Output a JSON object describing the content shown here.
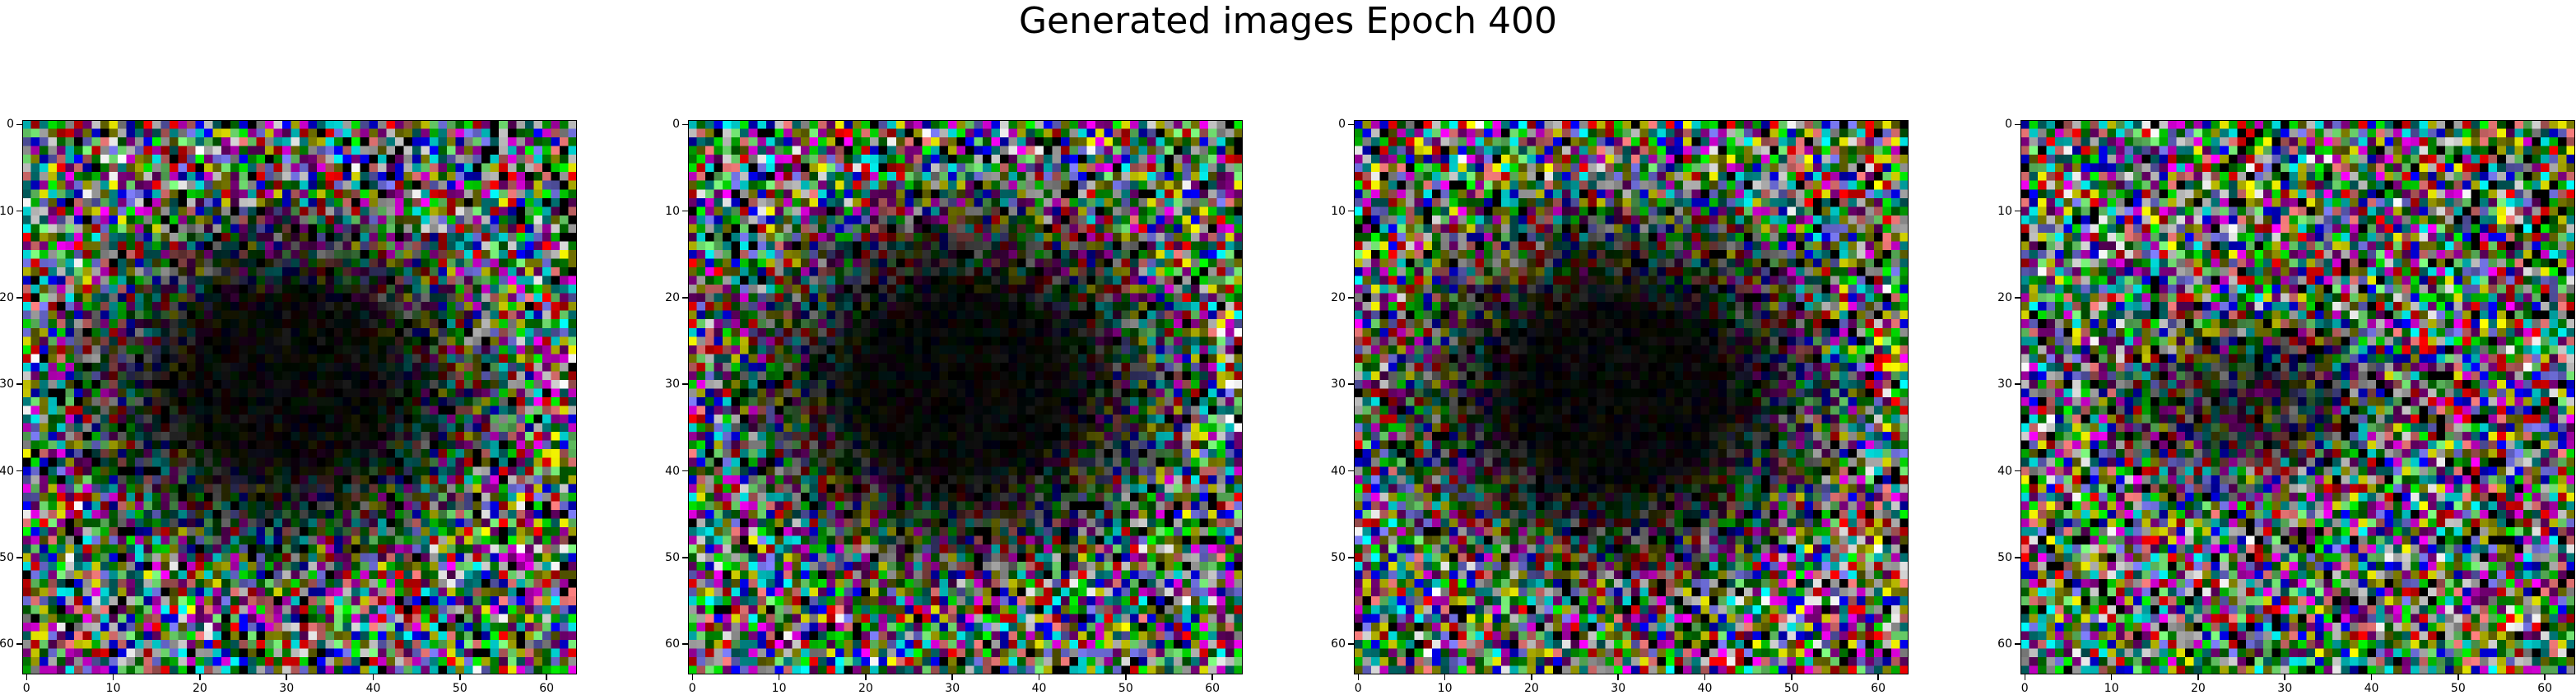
{
  "figure": {
    "title": "Generated images Epoch 400"
  },
  "panels": [
    {
      "image": "generated-sample-1",
      "x_ticks": [
        "0",
        "10",
        "20",
        "30",
        "40",
        "50",
        "60"
      ],
      "y_ticks": [
        "0",
        "10",
        "20",
        "30",
        "40",
        "50",
        "60"
      ],
      "dark_blob": {
        "cx": 30,
        "cy": 30,
        "rx": 21,
        "ry": 18,
        "darkness": 0.9
      },
      "seed": 11
    },
    {
      "image": "generated-sample-2",
      "x_ticks": [
        "0",
        "10",
        "20",
        "30",
        "40",
        "50",
        "60"
      ],
      "y_ticks": [
        "0",
        "10",
        "20",
        "30",
        "40",
        "50",
        "60"
      ],
      "dark_blob": {
        "cx": 31,
        "cy": 30,
        "rx": 22,
        "ry": 19,
        "darkness": 0.92
      },
      "seed": 23
    },
    {
      "image": "generated-sample-3",
      "x_ticks": [
        "0",
        "10",
        "20",
        "30",
        "40",
        "50",
        "60"
      ],
      "y_ticks": [
        "0",
        "10",
        "20",
        "30",
        "40",
        "50",
        "60"
      ],
      "dark_blob": {
        "cx": 30,
        "cy": 31,
        "rx": 22,
        "ry": 19,
        "darkness": 0.92
      },
      "seed": 37
    },
    {
      "image": "generated-sample-4",
      "x_ticks": [
        "0",
        "10",
        "20",
        "30",
        "40",
        "50",
        "60"
      ],
      "y_ticks": [
        "0",
        "10",
        "20",
        "30",
        "40",
        "50",
        "60"
      ],
      "dark_blob": {
        "cx": 26,
        "cy": 32,
        "rx": 14,
        "ry": 9,
        "darkness": 0.55
      },
      "seed": 53
    }
  ],
  "image_size": 64,
  "palette": [
    "#ff00ff",
    "#00ff00",
    "#ffff00",
    "#00ffff",
    "#0000ff",
    "#ff0000",
    "#ffffff",
    "#000000",
    "#800080",
    "#008000",
    "#808000",
    "#008080",
    "#c0c0c0",
    "#ff8080",
    "#80ff80",
    "#8080ff"
  ]
}
